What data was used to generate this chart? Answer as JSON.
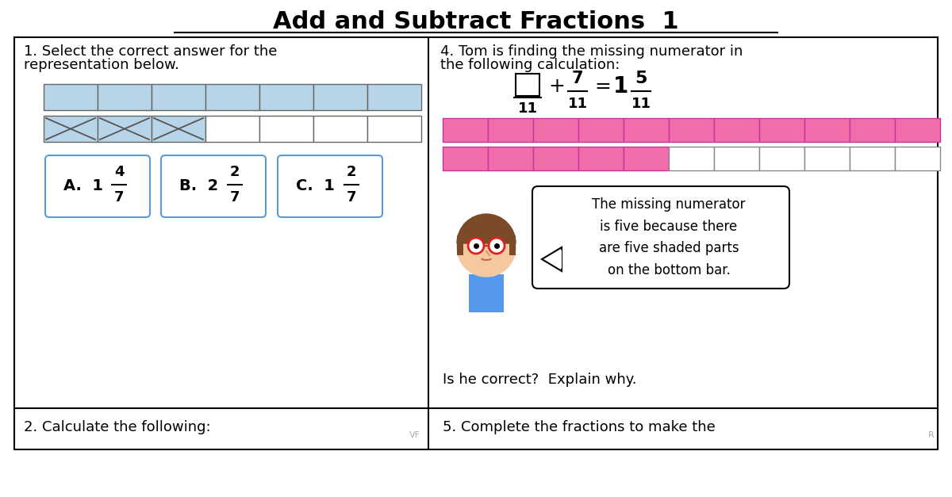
{
  "title": "Add and Subtract Fractions  1",
  "bg_color": "#ffffff",
  "border_color": "#000000",
  "light_blue": "#b8d4e8",
  "pink": "#f06eaa",
  "box_border": "#5b9bd5",
  "text_color": "#000000",
  "q1_text_line1": "1. Select the correct answer for the",
  "q1_text_line2": "representation below.",
  "q4_text_line1": "4. Tom is finding the missing numerator in",
  "q4_text_line2": "the following calculation:",
  "q2_text": "2. Calculate the following:",
  "q5_text": "5. Complete the fractions to make the",
  "answer_labels": [
    "A.  1",
    "B.  2",
    "C.  1"
  ],
  "answer_nums": [
    "4",
    "2",
    "2"
  ],
  "answer_dens": [
    "7",
    "7",
    "7"
  ],
  "speech_text": "The missing numerator\nis five because there\nare five shaded parts\non the bottom bar.",
  "bottom_text": "Is he correct?  Explain why.",
  "watermark_left": "VF",
  "watermark_right": "R"
}
